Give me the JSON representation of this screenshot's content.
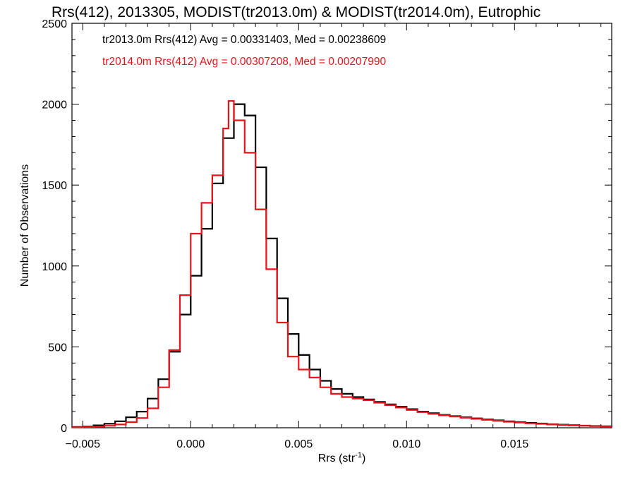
{
  "chart_data": {
    "type": "line",
    "title": "Rrs(412), 2013305, MODIST(tr2013.0m) & MODIST(tr2014.0m), Eutrophic",
    "xlabel": "Rrs (str",
    "xlabel_sup": "-1",
    "xlabel_end": ")",
    "ylabel": "Number of Observations",
    "xlim": [
      -0.0055,
      0.0195
    ],
    "ylim": [
      0,
      2500
    ],
    "xticks": [
      -0.005,
      0.0,
      0.005,
      0.01,
      0.015
    ],
    "xtick_labels": [
      "−0.005",
      "0.000",
      "0.005",
      "0.010",
      "0.015"
    ],
    "yticks": [
      0,
      500,
      1000,
      1500,
      2000,
      2500
    ],
    "ytick_labels": [
      "0",
      "500",
      "1000",
      "1500",
      "2000",
      "2500"
    ],
    "grid": false,
    "legend_position": "top-left",
    "legend": [
      {
        "text": "tr2013.0m Rrs(412) Avg = 0.00331403, Med = 0.00238609",
        "color": "#000000"
      },
      {
        "text": "tr2014.0m Rrs(412) Avg = 0.00307208, Med = 0.00207990",
        "color": "#e8141b"
      }
    ],
    "series": [
      {
        "color": "#000000",
        "points": [
          [
            -0.0055,
            5
          ],
          [
            -0.005,
            8
          ],
          [
            -0.0045,
            15
          ],
          [
            -0.004,
            25
          ],
          [
            -0.0035,
            40
          ],
          [
            -0.003,
            65
          ],
          [
            -0.0025,
            100
          ],
          [
            -0.002,
            180
          ],
          [
            -0.0015,
            300
          ],
          [
            -0.001,
            470
          ],
          [
            -0.0005,
            700
          ],
          [
            0.0,
            940
          ],
          [
            0.0005,
            1230
          ],
          [
            0.001,
            1510
          ],
          [
            0.0015,
            1790
          ],
          [
            0.002,
            2000
          ],
          [
            0.0025,
            1930
          ],
          [
            0.003,
            1610
          ],
          [
            0.0035,
            1170
          ],
          [
            0.004,
            800
          ],
          [
            0.0045,
            580
          ],
          [
            0.005,
            450
          ],
          [
            0.0055,
            360
          ],
          [
            0.006,
            290
          ],
          [
            0.0065,
            240
          ],
          [
            0.007,
            210
          ],
          [
            0.0075,
            190
          ],
          [
            0.008,
            175
          ],
          [
            0.0085,
            160
          ],
          [
            0.009,
            145
          ],
          [
            0.0095,
            130
          ],
          [
            0.01,
            115
          ],
          [
            0.0105,
            100
          ],
          [
            0.011,
            90
          ],
          [
            0.0115,
            80
          ],
          [
            0.012,
            72
          ],
          [
            0.0125,
            65
          ],
          [
            0.013,
            58
          ],
          [
            0.0135,
            52
          ],
          [
            0.014,
            46
          ],
          [
            0.0145,
            40
          ],
          [
            0.015,
            35
          ],
          [
            0.0155,
            30
          ],
          [
            0.016,
            26
          ],
          [
            0.0165,
            22
          ],
          [
            0.017,
            19
          ],
          [
            0.0175,
            16
          ],
          [
            0.018,
            13
          ],
          [
            0.0185,
            11
          ],
          [
            0.019,
            9
          ],
          [
            0.0195,
            8
          ]
        ]
      },
      {
        "color": "#e8141b",
        "points": [
          [
            -0.0055,
            3
          ],
          [
            -0.005,
            5
          ],
          [
            -0.0045,
            8
          ],
          [
            -0.004,
            12
          ],
          [
            -0.0035,
            20
          ],
          [
            -0.003,
            35
          ],
          [
            -0.0025,
            60
          ],
          [
            -0.002,
            120
          ],
          [
            -0.0015,
            250
          ],
          [
            -0.001,
            480
          ],
          [
            -0.0005,
            820
          ],
          [
            0.0,
            1200
          ],
          [
            0.0005,
            1390
          ],
          [
            0.001,
            1560
          ],
          [
            0.0015,
            1850
          ],
          [
            0.00175,
            2020
          ],
          [
            0.002,
            1900
          ],
          [
            0.0025,
            1700
          ],
          [
            0.003,
            1350
          ],
          [
            0.0035,
            980
          ],
          [
            0.004,
            650
          ],
          [
            0.0045,
            440
          ],
          [
            0.005,
            360
          ],
          [
            0.0055,
            310
          ],
          [
            0.006,
            250
          ],
          [
            0.0065,
            210
          ],
          [
            0.007,
            190
          ],
          [
            0.0075,
            180
          ],
          [
            0.008,
            170
          ],
          [
            0.0085,
            155
          ],
          [
            0.009,
            140
          ],
          [
            0.0095,
            125
          ],
          [
            0.01,
            110
          ],
          [
            0.0105,
            97
          ],
          [
            0.011,
            86
          ],
          [
            0.0115,
            77
          ],
          [
            0.012,
            70
          ],
          [
            0.0125,
            62
          ],
          [
            0.013,
            55
          ],
          [
            0.0135,
            49
          ],
          [
            0.014,
            43
          ],
          [
            0.0145,
            37
          ],
          [
            0.015,
            32
          ],
          [
            0.0155,
            27
          ],
          [
            0.016,
            24
          ],
          [
            0.0165,
            20
          ],
          [
            0.017,
            17
          ],
          [
            0.0175,
            14
          ],
          [
            0.018,
            12
          ],
          [
            0.0185,
            10
          ],
          [
            0.019,
            8
          ],
          [
            0.0195,
            7
          ]
        ]
      }
    ]
  }
}
